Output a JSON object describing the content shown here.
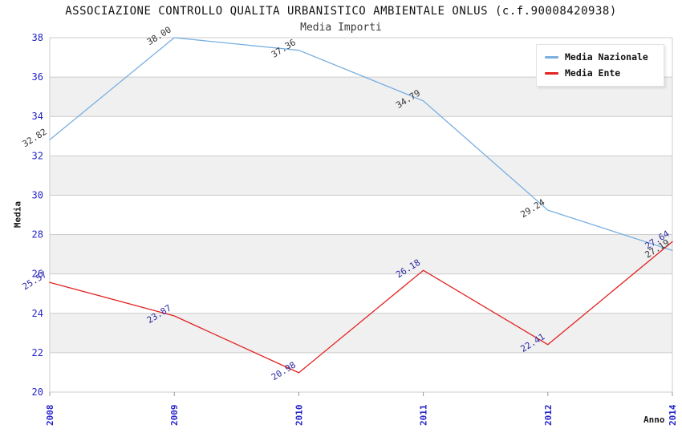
{
  "title": "ASSOCIAZIONE CONTROLLO QUALITA URBANISTICO AMBIENTALE ONLUS (c.f.90008420938)",
  "subtitle": "Media Importi",
  "chart_data": {
    "type": "line",
    "categories": [
      "2008",
      "2009",
      "2010",
      "2011",
      "2012",
      "2014"
    ],
    "series": [
      {
        "name": "Media Nazionale",
        "color": "#79afe1",
        "label_color": "#333333",
        "values": [
          32.82,
          38.0,
          37.36,
          34.79,
          29.24,
          27.19
        ]
      },
      {
        "name": "Media Ente",
        "color": "#e32222",
        "label_color": "#2929a3",
        "values": [
          25.57,
          23.87,
          20.98,
          26.18,
          22.41,
          27.64
        ]
      }
    ],
    "xlabel": "Anno",
    "ylabel": "Media",
    "ylim": [
      20,
      38
    ],
    "yticks": [
      20,
      22,
      24,
      26,
      28,
      30,
      32,
      34,
      36,
      38
    ],
    "grid": true,
    "legend_position": "top-right",
    "value_label_format": "2dp",
    "colors": {
      "tick_label": "#2424c8",
      "grid_line": "#cccccc",
      "band_base": "#ffffff",
      "band_alt": "#f0f0f0",
      "tick_mark": "#999999",
      "axis_title": "#1a1a1a"
    }
  }
}
